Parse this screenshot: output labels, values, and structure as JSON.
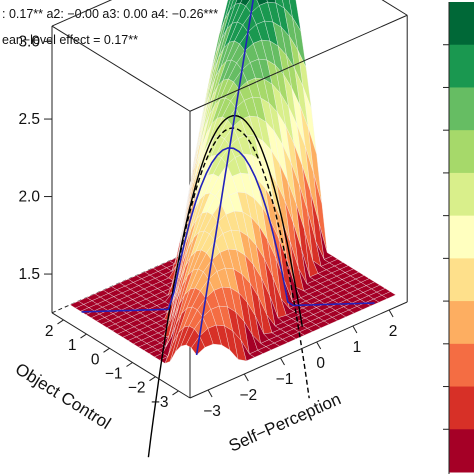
{
  "header": {
    "coefficients_line": ": 0.17**   a2: −0.00   a3: 0.00   a4: −0.26***",
    "effect_line": "ean−level effect = 0.17**"
  },
  "chart_data": {
    "type": "surface3d",
    "title": "",
    "xlabel": "Self−Perception",
    "ylabel": "Object Control",
    "zlabel": "",
    "x_ticks": [
      "−3",
      "−2",
      "−1",
      "0",
      "1",
      "2"
    ],
    "y_ticks": [
      "−3",
      "−2",
      "−1",
      "0",
      "1",
      "2"
    ],
    "z_ticks": [
      "1.5",
      "2.0",
      "2.5",
      "3.0"
    ],
    "xlim": [
      -3.5,
      2.5
    ],
    "ylim": [
      -3.5,
      2.5
    ],
    "zlim": [
      1.25,
      3.1
    ],
    "surface_function": {
      "form": "z = z0 + a1*(x+y) + a2*(x+y)^2 + a3*(x-y) + a4*(x-y)^2",
      "z0": 2.45,
      "a1": 0.17,
      "a2": -0.0,
      "a3": 0.0,
      "a4": -0.26
    },
    "lines": [
      {
        "name": "line of congruence",
        "color": "#2222bb"
      },
      {
        "name": "line of incongruence",
        "color": "#2222bb"
      }
    ],
    "colormap": [
      "#006837",
      "#1a9850",
      "#66bd63",
      "#a6d96a",
      "#d9ef8b",
      "#ffffbf",
      "#fee08b",
      "#fdae61",
      "#f46d43",
      "#d73027",
      "#a50026"
    ],
    "grid": false,
    "legend": "right colorbar"
  }
}
